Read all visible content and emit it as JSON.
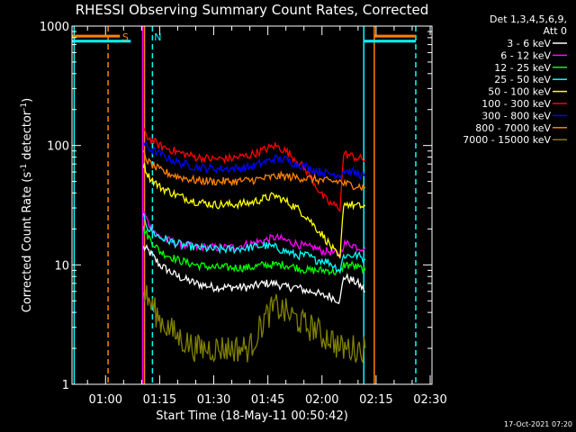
{
  "chart_data": {
    "type": "line",
    "title": "RHESSI Observing Summary Count Rates, Corrected",
    "xlabel": "Start Time (18-May-11 00:50:42)",
    "ylabel_main": "Corrected Count Rate (s",
    "ylabel_sup1": "-1",
    "ylabel_mid": " detector",
    "ylabel_sup2": "-1",
    "ylabel_end": ")",
    "y_scale": "log",
    "ylim": [
      1,
      1000
    ],
    "xlim_minutes": [
      50.7,
      150.5
    ],
    "y_ticks": [
      {
        "value": 1,
        "label": "1"
      },
      {
        "value": 10,
        "label": "10"
      },
      {
        "value": 100,
        "label": "100"
      },
      {
        "value": 1000,
        "label": "1000"
      }
    ],
    "x_ticks": [
      {
        "minute": 60,
        "label": "01:00"
      },
      {
        "minute": 75,
        "label": "01:15"
      },
      {
        "minute": 90,
        "label": "01:30"
      },
      {
        "minute": 105,
        "label": "01:45"
      },
      {
        "minute": 120,
        "label": "02:00"
      },
      {
        "minute": 135,
        "label": "02:15"
      },
      {
        "minute": 150,
        "label": "02:30"
      }
    ],
    "legend_header": [
      "Det 1,3,4,5,6,9,",
      "Att 0"
    ],
    "legend_placement": "right",
    "x_minutes": [
      70.5,
      72,
      75,
      80,
      85,
      90,
      95,
      100,
      104,
      107,
      110,
      113,
      116,
      118,
      120,
      122,
      125,
      126,
      128,
      130,
      132
    ],
    "series": [
      {
        "name": "3 - 6 keV",
        "color": "#ffffff",
        "values": [
          14,
          13,
          10,
          8,
          7,
          6.5,
          6.5,
          6.5,
          7,
          7,
          6.5,
          6.5,
          6,
          6,
          5.5,
          5.5,
          5,
          8,
          7.5,
          7,
          6
        ]
      },
      {
        "name": "6 - 12 keV",
        "color": "#ff00ff",
        "values": [
          28,
          22,
          17,
          15,
          14,
          14,
          14,
          15,
          16,
          17,
          16,
          15,
          14,
          14,
          13,
          13,
          12,
          15,
          15,
          14,
          14
        ]
      },
      {
        "name": "12 - 25 keV",
        "color": "#00ff00",
        "values": [
          20,
          17,
          13,
          11,
          10,
          9.5,
          9.5,
          9.5,
          10,
          10,
          10,
          9.5,
          9,
          9,
          9,
          9,
          8.5,
          10,
          10,
          9.5,
          9
        ]
      },
      {
        "name": "25 - 50 keV",
        "color": "#00ffff",
        "values": [
          25,
          20,
          17,
          15,
          14,
          13.5,
          13.5,
          14,
          14.5,
          14,
          13,
          12,
          12,
          11,
          11,
          10.5,
          9,
          12,
          12,
          12,
          11
        ]
      },
      {
        "name": "50 - 100 keV",
        "color": "#ffff00",
        "values": [
          70,
          55,
          45,
          38,
          34,
          32,
          32,
          33,
          36,
          38,
          34,
          30,
          25,
          21,
          18,
          15,
          11,
          33,
          32,
          31,
          31
        ]
      },
      {
        "name": "100 - 300 keV",
        "color": "#ff0000",
        "values": [
          130,
          115,
          100,
          88,
          80,
          77,
          78,
          83,
          92,
          100,
          90,
          75,
          60,
          48,
          38,
          33,
          30,
          85,
          82,
          78,
          76
        ]
      },
      {
        "name": "300 - 800 keV",
        "color": "#0000ff",
        "values": [
          105,
          95,
          85,
          72,
          66,
          64,
          64,
          66,
          72,
          78,
          76,
          70,
          66,
          62,
          60,
          58,
          57,
          62,
          60,
          58,
          55
        ]
      },
      {
        "name": "800 - 7000 keV",
        "color": "#ff8000",
        "values": [
          85,
          72,
          62,
          55,
          51,
          50,
          50,
          51,
          53,
          55,
          55,
          54,
          53,
          52,
          51,
          50,
          50,
          48,
          47,
          46,
          44
        ]
      },
      {
        "name": "7000 - 15000 keV",
        "color": "#808000",
        "values": [
          6,
          5,
          3.5,
          2.5,
          2,
          2,
          2,
          2,
          3.5,
          4.5,
          4,
          3.5,
          3,
          3,
          2.5,
          2.5,
          2,
          2,
          2,
          2,
          2
        ]
      }
    ],
    "flag_lines": [
      {
        "minute": 51.3,
        "color": "#00ffff",
        "style": "solid"
      },
      {
        "minute": 60.7,
        "color": "#ff8000",
        "style": "dashed"
      },
      {
        "minute": 70.3,
        "color": "#ff00ff",
        "style": "solid"
      },
      {
        "minute": 70.8,
        "color": "#ff8000",
        "style": "solid"
      },
      {
        "minute": 73.0,
        "color": "#00ffff",
        "style": "dashed"
      },
      {
        "minute": 131.6,
        "color": "#00ffff",
        "style": "solid"
      },
      {
        "minute": 134.5,
        "color": "#ff8000",
        "style": "solid"
      },
      {
        "minute": 146.0,
        "color": "#00ffff",
        "style": "dashed"
      }
    ],
    "flag_bars": [
      {
        "label": "S",
        "color": "#ff8000",
        "level": 0.972,
        "segments": [
          [
            50.7,
            64.0
          ],
          [
            134.5,
            146.0
          ]
        ]
      },
      {
        "label": "N",
        "color": "#00ffff",
        "level": 0.958,
        "segments": [
          [
            50.7,
            67.0
          ],
          [
            131.6,
            146.0
          ]
        ]
      }
    ],
    "flag_labels": [
      {
        "text": "S",
        "color": "#ff8000",
        "minute": 65.5
      },
      {
        "text": "N",
        "color": "#00ffff",
        "minute": 74.5
      }
    ]
  },
  "footer": {
    "timestamp": "17-Oct-2021 07:20"
  }
}
